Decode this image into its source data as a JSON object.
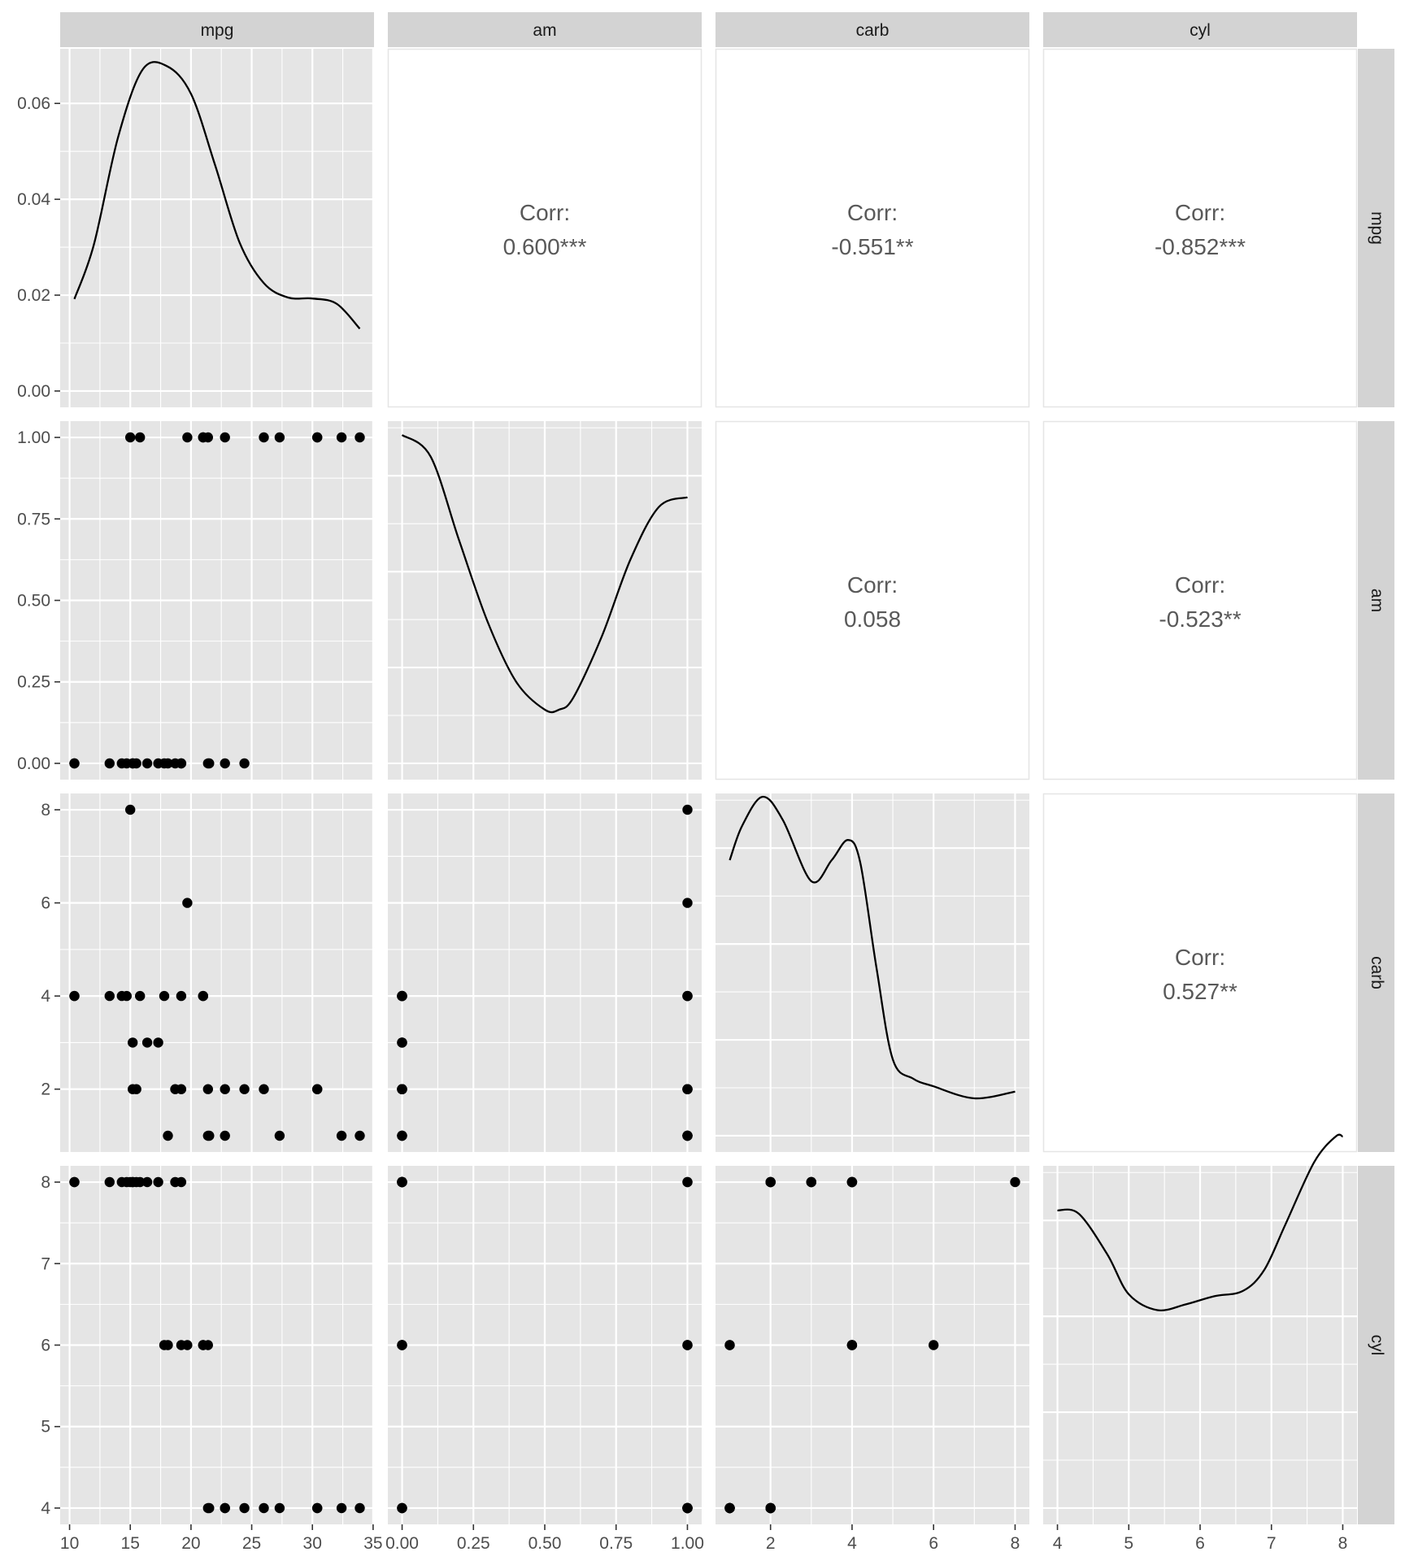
{
  "chart_data": {
    "type": "scatter-matrix",
    "variables": [
      "mpg",
      "am",
      "carb",
      "cyl"
    ],
    "colors": {
      "panel_bg": "#E5E5E5",
      "grid": "#FFFFFF",
      "strip_bg": "#D3D3D3",
      "strip_text": "#1A1A1A",
      "tick_text": "#4D4D4D",
      "corr_text": "#595959",
      "corr_border": "#E5E5E5",
      "mark": "#000000"
    },
    "data": {
      "mpg": [
        21.0,
        21.0,
        22.8,
        21.4,
        18.7,
        18.1,
        14.3,
        24.4,
        22.8,
        19.2,
        17.8,
        16.4,
        17.3,
        15.2,
        10.4,
        10.4,
        14.7,
        32.4,
        30.4,
        33.9,
        21.5,
        15.5,
        15.2,
        13.3,
        19.2,
        27.3,
        26.0,
        30.4,
        15.8,
        19.7,
        15.0,
        21.4
      ],
      "am": [
        1,
        1,
        1,
        0,
        0,
        0,
        0,
        0,
        0,
        0,
        0,
        0,
        0,
        0,
        0,
        0,
        0,
        1,
        1,
        1,
        0,
        0,
        0,
        0,
        0,
        1,
        1,
        1,
        1,
        1,
        1,
        1
      ],
      "carb": [
        4,
        4,
        1,
        1,
        2,
        1,
        4,
        2,
        2,
        4,
        4,
        3,
        3,
        3,
        4,
        4,
        4,
        1,
        2,
        1,
        1,
        2,
        2,
        4,
        2,
        1,
        2,
        2,
        4,
        6,
        8,
        2
      ],
      "cyl": [
        6,
        6,
        4,
        6,
        8,
        6,
        8,
        4,
        4,
        6,
        6,
        8,
        8,
        8,
        8,
        8,
        8,
        4,
        4,
        4,
        4,
        8,
        8,
        8,
        8,
        4,
        4,
        4,
        8,
        6,
        8,
        4
      ]
    },
    "axes": {
      "mpg": {
        "range": [
          9.225,
          35.075
        ],
        "ticks": [
          10,
          15,
          20,
          25,
          30,
          35
        ],
        "labels": [
          "10",
          "15",
          "20",
          "25",
          "30",
          "35"
        ]
      },
      "am": {
        "range": [
          -0.05,
          1.05
        ],
        "ticks": [
          0,
          0.25,
          0.5,
          0.75,
          1
        ],
        "labels": [
          "0.00",
          "0.25",
          "0.50",
          "0.75",
          "1.00"
        ]
      },
      "carb": {
        "range": [
          0.65,
          8.35
        ],
        "ticks": [
          2,
          4,
          6,
          8
        ],
        "labels": [
          "2",
          "4",
          "6",
          "8"
        ]
      },
      "cyl": {
        "range": [
          3.8,
          8.2
        ],
        "ticks": [
          4,
          5,
          6,
          7,
          8
        ],
        "labels": [
          "4",
          "5",
          "6",
          "7",
          "8"
        ]
      }
    },
    "density_axis": {
      "range": [
        -0.0034,
        0.0714
      ],
      "ticks": [
        0,
        0.02,
        0.04,
        0.06
      ],
      "labels": [
        "0.00",
        "0.02",
        "0.04",
        "0.06"
      ]
    },
    "densities": {
      "mpg": {
        "x": [
          10.4,
          12,
          14,
          16,
          18,
          20,
          22,
          24,
          26,
          28,
          30,
          32,
          33.9
        ],
        "y": [
          0.0192,
          0.0305,
          0.053,
          0.067,
          0.0678,
          0.062,
          0.047,
          0.031,
          0.0225,
          0.0195,
          0.0193,
          0.0182,
          0.013
        ]
      },
      "am": {
        "x": [
          0,
          0.1,
          0.2,
          0.3,
          0.4,
          0.5,
          0.55,
          0.6,
          0.7,
          0.8,
          0.9,
          1.0
        ],
        "y": [
          0.0685,
          0.064,
          0.0465,
          0.0295,
          0.017,
          0.0112,
          0.0112,
          0.0137,
          0.0265,
          0.0425,
          0.0535,
          0.0555
        ]
      },
      "carb": {
        "x": [
          1,
          1.3,
          1.8,
          2.3,
          3,
          3.5,
          3.9,
          4.2,
          4.6,
          5,
          5.5,
          6,
          7,
          8
        ],
        "y": [
          0.0575,
          0.0646,
          0.0707,
          0.0659,
          0.0531,
          0.0575,
          0.0617,
          0.057,
          0.035,
          0.0159,
          0.0119,
          0.0103,
          0.0078,
          0.0092
        ]
      },
      "cyl": {
        "x": [
          4,
          4.3,
          4.7,
          5,
          5.4,
          5.8,
          6.2,
          6.6,
          6.9,
          7.2,
          7.6,
          7.9,
          8
        ],
        "y": [
          0.0621,
          0.0614,
          0.0529,
          0.0446,
          0.0413,
          0.0425,
          0.0442,
          0.0453,
          0.0497,
          0.0593,
          0.0722,
          0.0775,
          0.0775
        ]
      }
    },
    "correlations": [
      {
        "row": "mpg",
        "col": "am",
        "label": "Corr:",
        "value": "0.600***"
      },
      {
        "row": "mpg",
        "col": "carb",
        "label": "Corr:",
        "value": "-0.551**"
      },
      {
        "row": "mpg",
        "col": "cyl",
        "label": "Corr:",
        "value": "-0.852***"
      },
      {
        "row": "am",
        "col": "carb",
        "label": "Corr:",
        "value": "0.058"
      },
      {
        "row": "am",
        "col": "cyl",
        "label": "Corr:",
        "value": "-0.523**"
      },
      {
        "row": "carb",
        "col": "cyl",
        "label": "Corr:",
        "value": "0.527**"
      }
    ],
    "strips": {
      "top": [
        "mpg",
        "am",
        "carb",
        "cyl"
      ],
      "right": [
        "mpg",
        "am",
        "carb",
        "cyl"
      ]
    },
    "grid": true
  }
}
